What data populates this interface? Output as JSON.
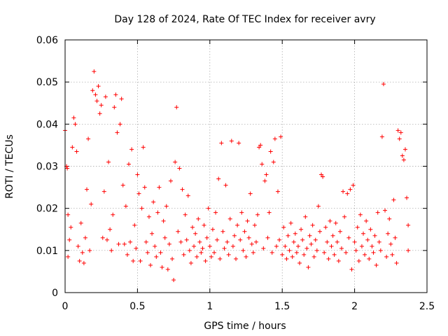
{
  "chart_data": {
    "type": "scatter",
    "title": "Day 128 of 2024, Rate Of TEC Index for receiver avry",
    "xlabel": "GPS time / hours",
    "ylabel": "ROTI / TECUs",
    "xlim": [
      0,
      2.5
    ],
    "ylim": [
      0,
      0.06
    ],
    "x_ticks": [
      0,
      0.5,
      1,
      1.5,
      2,
      2.5
    ],
    "x_tick_labels": [
      "0",
      "0.5",
      "1",
      "1.5",
      "2",
      "2.5"
    ],
    "y_ticks": [
      0,
      0.01,
      0.02,
      0.03,
      0.04,
      0.05,
      0.06
    ],
    "y_tick_labels": [
      "0",
      "0.01",
      "0.02",
      "0.03",
      "0.04",
      "0.05",
      "0.06"
    ],
    "grid": true,
    "marker": "+",
    "color": "#ff0000",
    "series": [
      {
        "name": "ROTI",
        "points": [
          [
            0.0,
            0.0385
          ],
          [
            0.01,
            0.03
          ],
          [
            0.015,
            0.0295
          ],
          [
            0.02,
            0.0085
          ],
          [
            0.02,
            0.0185
          ],
          [
            0.03,
            0.0125
          ],
          [
            0.04,
            0.0155
          ],
          [
            0.05,
            0.0345
          ],
          [
            0.06,
            0.0415
          ],
          [
            0.07,
            0.04
          ],
          [
            0.08,
            0.0335
          ],
          [
            0.09,
            0.011
          ],
          [
            0.1,
            0.0075
          ],
          [
            0.11,
            0.0165
          ],
          [
            0.12,
            0.0095
          ],
          [
            0.13,
            0.007
          ],
          [
            0.14,
            0.013
          ],
          [
            0.15,
            0.0245
          ],
          [
            0.16,
            0.0365
          ],
          [
            0.17,
            0.01
          ],
          [
            0.18,
            0.021
          ],
          [
            0.19,
            0.048
          ],
          [
            0.2,
            0.0525
          ],
          [
            0.21,
            0.047
          ],
          [
            0.22,
            0.0455
          ],
          [
            0.23,
            0.049
          ],
          [
            0.24,
            0.0425
          ],
          [
            0.25,
            0.0445
          ],
          [
            0.26,
            0.013
          ],
          [
            0.27,
            0.024
          ],
          [
            0.28,
            0.0465
          ],
          [
            0.29,
            0.0125
          ],
          [
            0.3,
            0.031
          ],
          [
            0.31,
            0.015
          ],
          [
            0.32,
            0.01
          ],
          [
            0.33,
            0.0185
          ],
          [
            0.34,
            0.044
          ],
          [
            0.35,
            0.047
          ],
          [
            0.36,
            0.038
          ],
          [
            0.37,
            0.0115
          ],
          [
            0.38,
            0.04
          ],
          [
            0.39,
            0.046
          ],
          [
            0.4,
            0.0255
          ],
          [
            0.41,
            0.0115
          ],
          [
            0.42,
            0.0205
          ],
          [
            0.43,
            0.009
          ],
          [
            0.44,
            0.0305
          ],
          [
            0.45,
            0.012
          ],
          [
            0.46,
            0.034
          ],
          [
            0.47,
            0.0075
          ],
          [
            0.48,
            0.016
          ],
          [
            0.49,
            0.0105
          ],
          [
            0.5,
            0.028
          ],
          [
            0.51,
            0.0235
          ],
          [
            0.52,
            0.0075
          ],
          [
            0.53,
            0.02
          ],
          [
            0.54,
            0.0345
          ],
          [
            0.55,
            0.025
          ],
          [
            0.56,
            0.012
          ],
          [
            0.57,
            0.0095
          ],
          [
            0.58,
            0.018
          ],
          [
            0.59,
            0.0065
          ],
          [
            0.6,
            0.014
          ],
          [
            0.61,
            0.0215
          ],
          [
            0.62,
            0.011
          ],
          [
            0.63,
            0.0085
          ],
          [
            0.64,
            0.019
          ],
          [
            0.65,
            0.025
          ],
          [
            0.66,
            0.0095
          ],
          [
            0.67,
            0.006
          ],
          [
            0.68,
            0.017
          ],
          [
            0.69,
            0.013
          ],
          [
            0.7,
            0.0205
          ],
          [
            0.71,
            0.0055
          ],
          [
            0.72,
            0.0115
          ],
          [
            0.73,
            0.0265
          ],
          [
            0.74,
            0.008
          ],
          [
            0.75,
            0.003
          ],
          [
            0.76,
            0.031
          ],
          [
            0.77,
            0.044
          ],
          [
            0.78,
            0.0145
          ],
          [
            0.79,
            0.0295
          ],
          [
            0.8,
            0.012
          ],
          [
            0.81,
            0.0245
          ],
          [
            0.82,
            0.009
          ],
          [
            0.83,
            0.0185
          ],
          [
            0.84,
            0.0125
          ],
          [
            0.85,
            0.023
          ],
          [
            0.86,
            0.01
          ],
          [
            0.87,
            0.007
          ],
          [
            0.88,
            0.0155
          ],
          [
            0.89,
            0.011
          ],
          [
            0.9,
            0.014
          ],
          [
            0.91,
            0.0085
          ],
          [
            0.92,
            0.0175
          ],
          [
            0.93,
            0.012
          ],
          [
            0.94,
            0.0095
          ],
          [
            0.95,
            0.0105
          ],
          [
            0.96,
            0.016
          ],
          [
            0.97,
            0.0075
          ],
          [
            0.98,
            0.013
          ],
          [
            0.99,
            0.02
          ],
          [
            1.0,
            0.011
          ],
          [
            1.01,
            0.0085
          ],
          [
            1.02,
            0.015
          ],
          [
            1.03,
            0.0095
          ],
          [
            1.04,
            0.019
          ],
          [
            1.05,
            0.0125
          ],
          [
            1.06,
            0.027
          ],
          [
            1.07,
            0.008
          ],
          [
            1.08,
            0.0355
          ],
          [
            1.09,
            0.0145
          ],
          [
            1.1,
            0.0105
          ],
          [
            1.11,
            0.0255
          ],
          [
            1.12,
            0.012
          ],
          [
            1.13,
            0.009
          ],
          [
            1.14,
            0.0175
          ],
          [
            1.15,
            0.036
          ],
          [
            1.16,
            0.011
          ],
          [
            1.17,
            0.0135
          ],
          [
            1.18,
            0.008
          ],
          [
            1.19,
            0.016
          ],
          [
            1.2,
            0.0355
          ],
          [
            1.21,
            0.0125
          ],
          [
            1.22,
            0.019
          ],
          [
            1.23,
            0.01
          ],
          [
            1.24,
            0.0145
          ],
          [
            1.25,
            0.0085
          ],
          [
            1.26,
            0.017
          ],
          [
            1.27,
            0.013
          ],
          [
            1.28,
            0.0235
          ],
          [
            1.29,
            0.0115
          ],
          [
            1.3,
            0.0095
          ],
          [
            1.31,
            0.016
          ],
          [
            1.32,
            0.012
          ],
          [
            1.33,
            0.0185
          ],
          [
            1.34,
            0.0345
          ],
          [
            1.35,
            0.035
          ],
          [
            1.36,
            0.0305
          ],
          [
            1.37,
            0.0105
          ],
          [
            1.38,
            0.0265
          ],
          [
            1.39,
            0.028
          ],
          [
            1.4,
            0.013
          ],
          [
            1.41,
            0.019
          ],
          [
            1.42,
            0.0335
          ],
          [
            1.43,
            0.0095
          ],
          [
            1.44,
            0.031
          ],
          [
            1.45,
            0.0365
          ],
          [
            1.46,
            0.011
          ],
          [
            1.47,
            0.024
          ],
          [
            1.48,
            0.0125
          ],
          [
            1.49,
            0.037
          ],
          [
            1.5,
            0.009
          ],
          [
            1.51,
            0.0155
          ],
          [
            1.52,
            0.011
          ],
          [
            1.53,
            0.008
          ],
          [
            1.54,
            0.0135
          ],
          [
            1.55,
            0.01
          ],
          [
            1.56,
            0.0165
          ],
          [
            1.57,
            0.0085
          ],
          [
            1.58,
            0.012
          ],
          [
            1.59,
            0.014
          ],
          [
            1.6,
            0.0095
          ],
          [
            1.61,
            0.011
          ],
          [
            1.62,
            0.007
          ],
          [
            1.63,
            0.015
          ],
          [
            1.64,
            0.0125
          ],
          [
            1.65,
            0.009
          ],
          [
            1.66,
            0.018
          ],
          [
            1.67,
            0.0105
          ],
          [
            1.68,
            0.006
          ],
          [
            1.69,
            0.0135
          ],
          [
            1.7,
            0.0115
          ],
          [
            1.71,
            0.016
          ],
          [
            1.72,
            0.0085
          ],
          [
            1.73,
            0.0125
          ],
          [
            1.74,
            0.01
          ],
          [
            1.75,
            0.0205
          ],
          [
            1.76,
            0.0145
          ],
          [
            1.77,
            0.028
          ],
          [
            1.78,
            0.0275
          ],
          [
            1.79,
            0.0095
          ],
          [
            1.8,
            0.0155
          ],
          [
            1.81,
            0.012
          ],
          [
            1.82,
            0.008
          ],
          [
            1.83,
            0.017
          ],
          [
            1.84,
            0.011
          ],
          [
            1.85,
            0.0135
          ],
          [
            1.86,
            0.009
          ],
          [
            1.87,
            0.0165
          ],
          [
            1.88,
            0.012
          ],
          [
            1.89,
            0.0075
          ],
          [
            1.9,
            0.0145
          ],
          [
            1.91,
            0.0105
          ],
          [
            1.92,
            0.024
          ],
          [
            1.93,
            0.018
          ],
          [
            1.94,
            0.0095
          ],
          [
            1.95,
            0.0235
          ],
          [
            1.96,
            0.013
          ],
          [
            1.97,
            0.0245
          ],
          [
            1.98,
            0.0055
          ],
          [
            1.99,
            0.0255
          ],
          [
            2.0,
            0.012
          ],
          [
            2.01,
            0.01
          ],
          [
            2.02,
            0.0155
          ],
          [
            2.03,
            0.0075
          ],
          [
            2.04,
            0.0185
          ],
          [
            2.05,
            0.011
          ],
          [
            2.06,
            0.014
          ],
          [
            2.07,
            0.009
          ],
          [
            2.08,
            0.017
          ],
          [
            2.09,
            0.0125
          ],
          [
            2.1,
            0.008
          ],
          [
            2.11,
            0.015
          ],
          [
            2.12,
            0.011
          ],
          [
            2.13,
            0.0095
          ],
          [
            2.14,
            0.0135
          ],
          [
            2.15,
            0.0065
          ],
          [
            2.16,
            0.019
          ],
          [
            2.17,
            0.012
          ],
          [
            2.18,
            0.01
          ],
          [
            2.19,
            0.037
          ],
          [
            2.2,
            0.0495
          ],
          [
            2.21,
            0.0195
          ],
          [
            2.22,
            0.0085
          ],
          [
            2.23,
            0.014
          ],
          [
            2.24,
            0.0175
          ],
          [
            2.25,
            0.0115
          ],
          [
            2.26,
            0.009
          ],
          [
            2.27,
            0.022
          ],
          [
            2.28,
            0.013
          ],
          [
            2.29,
            0.007
          ],
          [
            2.3,
            0.0385
          ],
          [
            2.31,
            0.0365
          ],
          [
            2.32,
            0.038
          ],
          [
            2.33,
            0.0325
          ],
          [
            2.34,
            0.0315
          ],
          [
            2.35,
            0.034
          ],
          [
            2.36,
            0.0225
          ],
          [
            2.37,
            0.01
          ],
          [
            2.37,
            0.016
          ]
        ]
      }
    ]
  }
}
